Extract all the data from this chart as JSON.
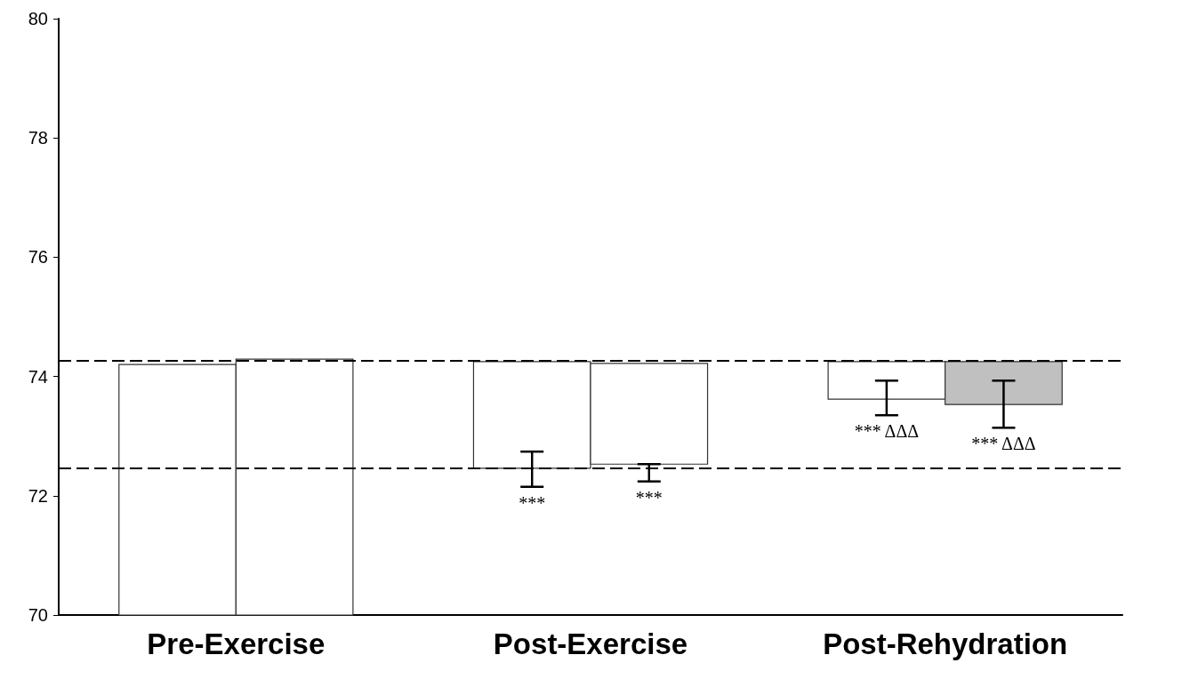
{
  "chart_data": {
    "type": "bar",
    "categories": [
      "Pre-Exercise",
      "Post-Exercise",
      "Post-Rehydration"
    ],
    "series": [
      {
        "colors": [
          "#ffffff",
          "#ffffff",
          "#ffffff"
        ],
        "base": [
          70,
          74.25,
          74.25
        ],
        "values": [
          4.2,
          -1.79,
          -0.63
        ],
        "errors": [
          null,
          [
            72.15,
            72.74
          ],
          [
            73.35,
            73.93
          ]
        ],
        "value_labels": [
          null,
          "***",
          "*** ΔΔΔ"
        ]
      },
      {
        "colors": [
          "#ffffff",
          "#ffffff",
          "#c0c0c0"
        ],
        "base": [
          70,
          74.22,
          74.25
        ],
        "values": [
          4.29,
          -1.69,
          -0.72
        ],
        "errors": [
          null,
          [
            72.24,
            72.53
          ],
          [
            73.14,
            73.93
          ]
        ],
        "value_labels": [
          null,
          "***",
          "*** ΔΔΔ"
        ]
      }
    ],
    "ylim": [
      70,
      80
    ],
    "yticks": [
      70,
      72,
      74,
      76,
      78,
      80
    ],
    "grid": false,
    "ref_lines": [
      {
        "axis": "y",
        "value": 74.26,
        "color": "#000000",
        "line_style": "dashed"
      },
      {
        "axis": "y",
        "value": 72.47,
        "color": "#000000",
        "line_style": "dashed"
      }
    ]
  }
}
